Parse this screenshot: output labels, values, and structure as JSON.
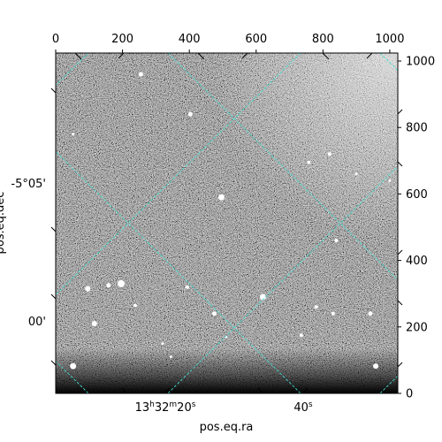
{
  "chart_data": {
    "type": "image",
    "colormap": "gray",
    "pixel_axes": {
      "x_ticks": [
        0,
        200,
        400,
        600,
        800,
        1000
      ],
      "y_ticks": [
        0,
        200,
        400,
        600,
        800,
        1000
      ],
      "xlim": [
        0,
        1024
      ],
      "ylim": [
        0,
        1024
      ]
    },
    "world_axes": {
      "xlabel": "pos.eq.ra",
      "ylabel": "pos.eq.dec",
      "ra_ticks": [
        {
          "label_h": "13",
          "label_m": "32",
          "label_s": "20",
          "unit_h": "h",
          "unit_m": "m",
          "unit_s": "s",
          "px": 245
        },
        {
          "label_s": "40",
          "unit_s": "s",
          "px": 758
        }
      ],
      "dec_ticks": [
        {
          "label": "-5°05'",
          "py": 620
        },
        {
          "label": "00'",
          "py": 210
        }
      ]
    },
    "grid": {
      "visible": true,
      "color": "#40e0d0",
      "style": "dashed"
    },
    "stars": [
      {
        "x": 255,
        "y": 960,
        "r": 2.5
      },
      {
        "x": 403,
        "y": 840,
        "r": 2.5
      },
      {
        "x": 496,
        "y": 590,
        "r": 3.5
      },
      {
        "x": 196,
        "y": 330,
        "r": 4
      },
      {
        "x": 158,
        "y": 325,
        "r": 2.5
      },
      {
        "x": 96,
        "y": 315,
        "r": 3
      },
      {
        "x": 116,
        "y": 210,
        "r": 3
      },
      {
        "x": 52,
        "y": 82,
        "r": 3.5
      },
      {
        "x": 238,
        "y": 265,
        "r": 2
      },
      {
        "x": 394,
        "y": 320,
        "r": 2
      },
      {
        "x": 475,
        "y": 240,
        "r": 2.5
      },
      {
        "x": 620,
        "y": 290,
        "r": 3.5
      },
      {
        "x": 735,
        "y": 175,
        "r": 2
      },
      {
        "x": 758,
        "y": 695,
        "r": 2
      },
      {
        "x": 840,
        "y": 460,
        "r": 2
      },
      {
        "x": 780,
        "y": 260,
        "r": 2
      },
      {
        "x": 830,
        "y": 240,
        "r": 2
      },
      {
        "x": 942,
        "y": 240,
        "r": 2.5
      },
      {
        "x": 958,
        "y": 82,
        "r": 3
      },
      {
        "x": 820,
        "y": 720,
        "r": 2
      },
      {
        "x": 900,
        "y": 660,
        "r": 1.5
      },
      {
        "x": 1000,
        "y": 640,
        "r": 1.5
      },
      {
        "x": 510,
        "y": 170,
        "r": 1.5
      },
      {
        "x": 320,
        "y": 150,
        "r": 1.5
      },
      {
        "x": 345,
        "y": 110,
        "r": 1.5
      },
      {
        "x": 52,
        "y": 780,
        "r": 1.5
      }
    ]
  }
}
